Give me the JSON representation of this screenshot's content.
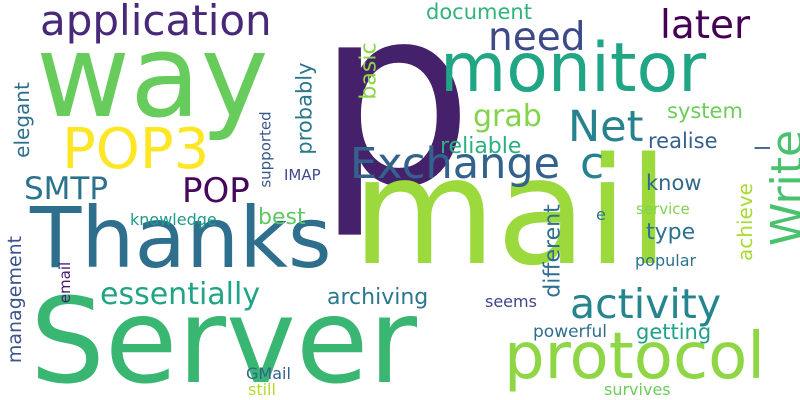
{
  "words": [
    {
      "text": "p",
      "color": "#46216b",
      "rotate": false
    },
    {
      "text": "mail",
      "color": "#9bd93c",
      "rotate": false
    },
    {
      "text": "Server",
      "color": "#38b672",
      "rotate": false
    },
    {
      "text": "way",
      "color": "#67cc5c",
      "rotate": false
    },
    {
      "text": "Thanks",
      "color": "#2f6f8e",
      "rotate": false
    },
    {
      "text": "monitor",
      "color": "#21a685",
      "rotate": false
    },
    {
      "text": "protocol",
      "color": "#8ed645",
      "rotate": false
    },
    {
      "text": "POP3",
      "color": "#fde725",
      "rotate": false
    },
    {
      "text": "application",
      "color": "#482878",
      "rotate": false
    },
    {
      "text": "Exchange",
      "color": "#33638d",
      "rotate": false
    },
    {
      "text": "Net",
      "color": "#26828e",
      "rotate": false
    },
    {
      "text": "c",
      "color": "#26828e",
      "rotate": false
    },
    {
      "text": "activity",
      "color": "#25858e",
      "rotate": false
    },
    {
      "text": "essentially",
      "color": "#20a386",
      "rotate": false
    },
    {
      "text": "Write",
      "color": "#4ac16d",
      "rotate": true
    },
    {
      "text": "need",
      "color": "#3e4989",
      "rotate": false
    },
    {
      "text": "later",
      "color": "#440154",
      "rotate": false
    },
    {
      "text": "SMTP",
      "color": "#2c728e",
      "rotate": false
    },
    {
      "text": "POP",
      "color": "#46085c",
      "rotate": false
    },
    {
      "text": "grab",
      "color": "#84d44b",
      "rotate": false
    },
    {
      "text": "archiving",
      "color": "#2a788e",
      "rotate": false
    },
    {
      "text": "reliable",
      "color": "#2ab07f",
      "rotate": false
    },
    {
      "text": "document",
      "color": "#2fb47c",
      "rotate": false
    },
    {
      "text": "basic",
      "color": "#8bd646",
      "rotate": true
    },
    {
      "text": "probably",
      "color": "#2a788e",
      "rotate": true
    },
    {
      "text": "system",
      "color": "#6ccd5a",
      "rotate": false
    },
    {
      "text": "realise",
      "color": "#355f8d",
      "rotate": false
    },
    {
      "text": "know",
      "color": "#31688e",
      "rotate": false
    },
    {
      "text": "best",
      "color": "#5ec962",
      "rotate": false
    },
    {
      "text": "type",
      "color": "#2d718e",
      "rotate": false
    },
    {
      "text": "different",
      "color": "#2e6e8e",
      "rotate": true
    },
    {
      "text": "getting",
      "color": "#1fa088",
      "rotate": false
    },
    {
      "text": "achieve",
      "color": "#a8db34",
      "rotate": true
    },
    {
      "text": "elegant",
      "color": "#2d708e",
      "rotate": true
    },
    {
      "text": "management",
      "color": "#3b528b",
      "rotate": true
    },
    {
      "text": "supported",
      "color": "#38598c",
      "rotate": true
    },
    {
      "text": "IMAP",
      "color": "#3e4a89",
      "rotate": false
    },
    {
      "text": "knowledge",
      "color": "#1f9a8a",
      "rotate": false
    },
    {
      "text": "email",
      "color": "#481b6d",
      "rotate": true
    },
    {
      "text": "seems",
      "color": "#3f4788",
      "rotate": false
    },
    {
      "text": "powerful",
      "color": "#2e6e8e",
      "rotate": false
    },
    {
      "text": "popular",
      "color": "#2c728e",
      "rotate": false
    },
    {
      "text": "service",
      "color": "#7fd34e",
      "rotate": false
    },
    {
      "text": "e",
      "color": "#2c728e",
      "rotate": false
    },
    {
      "text": "GMail",
      "color": "#33638d",
      "rotate": false
    },
    {
      "text": "still",
      "color": "#b2dd2d",
      "rotate": false
    },
    {
      "text": "survives",
      "color": "#6ccd5a",
      "rotate": false
    },
    {
      "text": "l",
      "color": "#38598c",
      "rotate": true
    }
  ]
}
